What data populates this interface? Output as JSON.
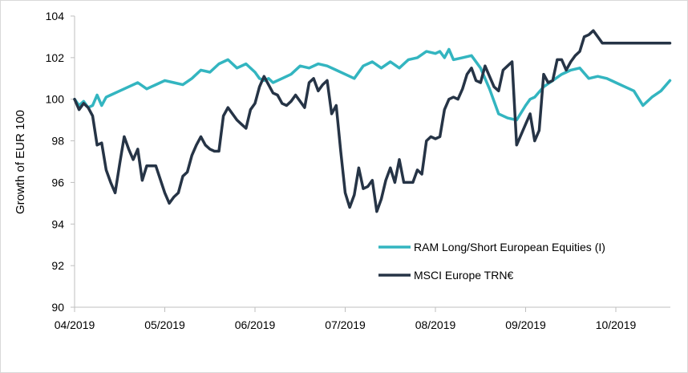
{
  "chart_data": {
    "type": "line",
    "title": "",
    "xlabel": "",
    "ylabel": "Growth of EUR 100",
    "ylim": [
      90,
      104
    ],
    "yticks": [
      90,
      92,
      94,
      96,
      98,
      100,
      102,
      104
    ],
    "xlim": [
      0,
      6.6
    ],
    "x_tick_labels": [
      "04/2019",
      "05/2019",
      "06/2019",
      "07/2019",
      "08/2019",
      "09/2019",
      "10/2019"
    ],
    "grid": false,
    "legend_position": "bottom-right",
    "series": [
      {
        "name": "RAM Long/Short European Equities (I)",
        "color": "#33b5c0",
        "x": [
          0,
          0.05,
          0.1,
          0.15,
          0.2,
          0.25,
          0.3,
          0.35,
          0.4,
          0.5,
          0.6,
          0.7,
          0.8,
          0.85,
          0.9,
          1.0,
          1.1,
          1.2,
          1.3,
          1.4,
          1.5,
          1.6,
          1.7,
          1.8,
          1.9,
          2.0,
          2.05,
          2.1,
          2.15,
          2.2,
          2.3,
          2.4,
          2.5,
          2.6,
          2.7,
          2.8,
          2.9,
          3.0,
          3.1,
          3.2,
          3.3,
          3.4,
          3.5,
          3.6,
          3.7,
          3.8,
          3.9,
          4.0,
          4.05,
          4.1,
          4.15,
          4.2,
          4.3,
          4.4,
          4.5,
          4.6,
          4.7,
          4.8,
          4.9,
          5.0,
          5.05,
          5.1,
          5.2,
          5.3,
          5.4,
          5.5,
          5.6,
          5.7,
          5.8,
          5.9,
          6.0,
          6.1,
          6.2,
          6.3,
          6.4,
          6.5,
          6.6
        ],
        "values": [
          100.0,
          99.7,
          99.9,
          99.6,
          99.7,
          100.2,
          99.7,
          100.1,
          100.2,
          100.4,
          100.6,
          100.8,
          100.5,
          100.6,
          100.7,
          100.9,
          100.8,
          100.7,
          101.0,
          101.4,
          101.3,
          101.7,
          101.9,
          101.5,
          101.7,
          101.3,
          101.0,
          100.9,
          101.0,
          100.8,
          101.0,
          101.2,
          101.6,
          101.5,
          101.7,
          101.6,
          101.4,
          101.2,
          101.0,
          101.6,
          101.8,
          101.5,
          101.8,
          101.5,
          101.9,
          102.0,
          102.3,
          102.2,
          102.3,
          102.0,
          102.4,
          101.9,
          102.0,
          102.1,
          101.5,
          100.5,
          99.3,
          99.1,
          99.0,
          99.7,
          100.0,
          100.1,
          100.6,
          100.9,
          101.2,
          101.4,
          101.5,
          101.0,
          101.1,
          101.0,
          100.8,
          100.6,
          100.4,
          99.7,
          100.1,
          100.4,
          100.9
        ]
      },
      {
        "name": "MSCI Europe TRN€",
        "color": "#263446",
        "x": [
          0,
          0.05,
          0.1,
          0.15,
          0.2,
          0.25,
          0.3,
          0.35,
          0.4,
          0.45,
          0.5,
          0.55,
          0.6,
          0.65,
          0.7,
          0.75,
          0.8,
          0.85,
          0.9,
          1.0,
          1.05,
          1.1,
          1.15,
          1.2,
          1.25,
          1.3,
          1.35,
          1.4,
          1.45,
          1.5,
          1.55,
          1.6,
          1.65,
          1.7,
          1.75,
          1.8,
          1.85,
          1.9,
          1.95,
          2.0,
          2.05,
          2.1,
          2.15,
          2.2,
          2.25,
          2.3,
          2.35,
          2.4,
          2.45,
          2.5,
          2.55,
          2.6,
          2.65,
          2.7,
          2.75,
          2.8,
          2.85,
          2.9,
          2.95,
          3.0,
          3.05,
          3.1,
          3.15,
          3.2,
          3.25,
          3.3,
          3.35,
          3.4,
          3.45,
          3.5,
          3.55,
          3.6,
          3.65,
          3.7,
          3.75,
          3.8,
          3.85,
          3.9,
          3.95,
          4.0,
          4.05,
          4.1,
          4.15,
          4.2,
          4.25,
          4.3,
          4.35,
          4.4,
          4.45,
          4.5,
          4.55,
          4.6,
          4.65,
          4.7,
          4.75,
          4.8,
          4.85,
          4.9,
          4.95,
          5.0,
          5.05,
          5.1,
          5.15,
          5.2,
          5.25,
          5.3,
          5.35,
          5.4,
          5.45,
          5.5,
          5.55,
          5.6,
          5.65,
          5.7,
          5.75,
          5.8,
          5.85,
          5.9,
          5.95,
          6.0,
          6.05,
          6.1,
          6.15,
          6.2,
          6.25,
          6.3,
          6.35,
          6.4,
          6.45,
          6.5,
          6.55,
          6.6
        ],
        "values": [
          100.0,
          99.5,
          99.8,
          99.6,
          99.2,
          97.8,
          97.9,
          96.6,
          96.0,
          95.5,
          96.9,
          98.2,
          97.6,
          97.1,
          97.6,
          96.1,
          96.8,
          96.8,
          96.8,
          95.5,
          95.0,
          95.3,
          95.5,
          96.3,
          96.5,
          97.3,
          97.8,
          98.2,
          97.8,
          97.6,
          97.5,
          97.5,
          99.2,
          99.6,
          99.3,
          99.0,
          98.8,
          98.6,
          99.5,
          99.8,
          100.6,
          101.1,
          100.7,
          100.3,
          100.2,
          99.8,
          99.7,
          99.9,
          100.2,
          99.9,
          99.6,
          100.8,
          101.0,
          100.4,
          100.7,
          100.9,
          99.3,
          99.7,
          97.5,
          95.5,
          94.8,
          95.4,
          96.7,
          95.7,
          95.8,
          96.1,
          94.6,
          95.2,
          96.1,
          96.7,
          96.0,
          97.1,
          96.0,
          96.0,
          96.0,
          96.6,
          96.4,
          98.0,
          98.2,
          98.1,
          98.2,
          99.5,
          100.0,
          100.1,
          100.0,
          100.5,
          101.2,
          101.5,
          100.9,
          100.8,
          101.6,
          101.1,
          100.6,
          100.4,
          101.4,
          101.6,
          101.8,
          97.8,
          98.3,
          98.8,
          99.3,
          98.0,
          98.5,
          101.2,
          100.8,
          100.9,
          101.9,
          101.9,
          101.4,
          101.8,
          102.1,
          102.3,
          103.0,
          103.1,
          103.3,
          103.0,
          102.7,
          102.7,
          102.7,
          102.7,
          102.7,
          102.7,
          102.7,
          102.7,
          102.7,
          102.7,
          102.7,
          102.7,
          102.7,
          102.7,
          102.7,
          102.7
        ]
      }
    ]
  }
}
